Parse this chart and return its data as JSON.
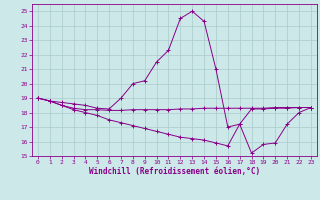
{
  "xlabel": "Windchill (Refroidissement éolien,°C)",
  "xlim": [
    -0.5,
    23.5
  ],
  "ylim": [
    15,
    25.5
  ],
  "xticks": [
    0,
    1,
    2,
    3,
    4,
    5,
    6,
    7,
    8,
    9,
    10,
    11,
    12,
    13,
    14,
    15,
    16,
    17,
    18,
    19,
    20,
    21,
    22,
    23
  ],
  "yticks": [
    15,
    16,
    17,
    18,
    19,
    20,
    21,
    22,
    23,
    24,
    25
  ],
  "bg_color": "#cce8e8",
  "line_color": "#880088",
  "grid_color": "#aacccc",
  "series1_x": [
    0,
    1,
    2,
    3,
    4,
    5,
    6,
    7,
    8,
    9,
    10,
    11,
    12,
    13,
    14,
    15,
    16,
    17,
    18,
    19,
    20,
    21,
    22,
    23
  ],
  "series1_y": [
    19.0,
    18.8,
    18.7,
    18.6,
    18.5,
    18.3,
    18.25,
    19.0,
    20.0,
    20.2,
    21.5,
    22.3,
    24.5,
    25.0,
    24.3,
    21.0,
    17.0,
    17.2,
    18.25,
    18.25,
    18.3,
    18.3,
    18.35,
    18.35
  ],
  "series2_x": [
    0,
    1,
    2,
    3,
    4,
    5,
    6,
    7,
    8,
    9,
    10,
    11,
    12,
    13,
    14,
    15,
    16,
    17,
    18,
    19,
    20,
    21,
    22,
    23
  ],
  "series2_y": [
    19.0,
    18.8,
    18.5,
    18.3,
    18.2,
    18.2,
    18.15,
    18.15,
    18.2,
    18.2,
    18.2,
    18.2,
    18.25,
    18.25,
    18.3,
    18.3,
    18.3,
    18.3,
    18.3,
    18.3,
    18.35,
    18.35,
    18.35,
    18.35
  ],
  "series3_x": [
    0,
    1,
    2,
    3,
    4,
    5,
    6,
    7,
    8,
    9,
    10,
    11,
    12,
    13,
    14,
    15,
    16,
    17,
    18,
    19,
    20,
    21,
    22,
    23
  ],
  "series3_y": [
    19.0,
    18.8,
    18.5,
    18.2,
    18.0,
    17.8,
    17.5,
    17.3,
    17.1,
    16.9,
    16.7,
    16.5,
    16.3,
    16.2,
    16.1,
    15.9,
    15.7,
    17.2,
    15.2,
    15.8,
    15.9,
    17.2,
    18.0,
    18.35
  ]
}
